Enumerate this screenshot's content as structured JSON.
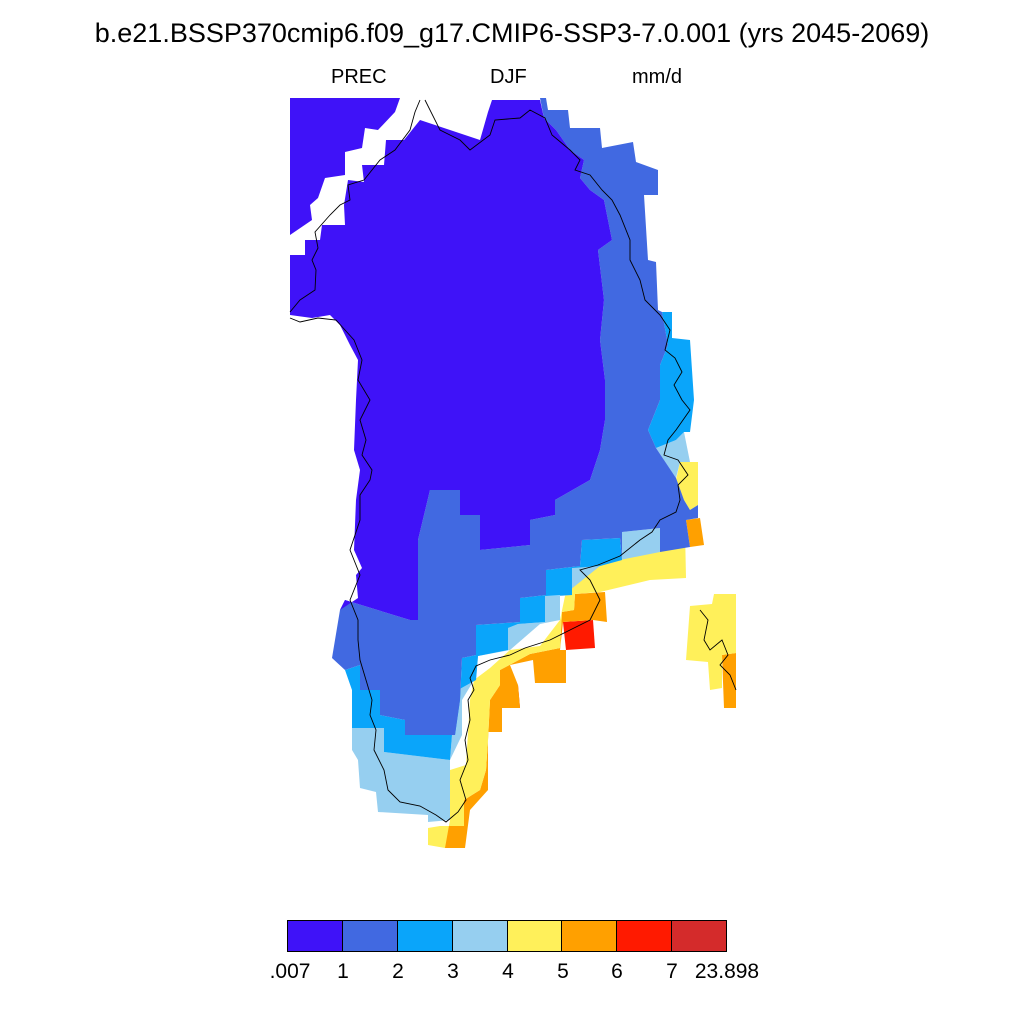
{
  "title": "b.e21.BSSP370cmip6.f09_g17.CMIP6-SSP3-7.0.001 (yrs 2045-2069)",
  "subtitle_left": "PREC",
  "subtitle_center": "DJF",
  "subtitle_right": "mm/d",
  "colorbar": {
    "colors": [
      "#3f12f8",
      "#4169e1",
      "#0aa5fa",
      "#96cff0",
      "#fff05a",
      "#ffa000",
      "#ff1a00",
      "#d42b2b"
    ],
    "labels": [
      ".007",
      "1",
      "2",
      "3",
      "4",
      "5",
      "6",
      "7",
      "23.898"
    ]
  }
}
